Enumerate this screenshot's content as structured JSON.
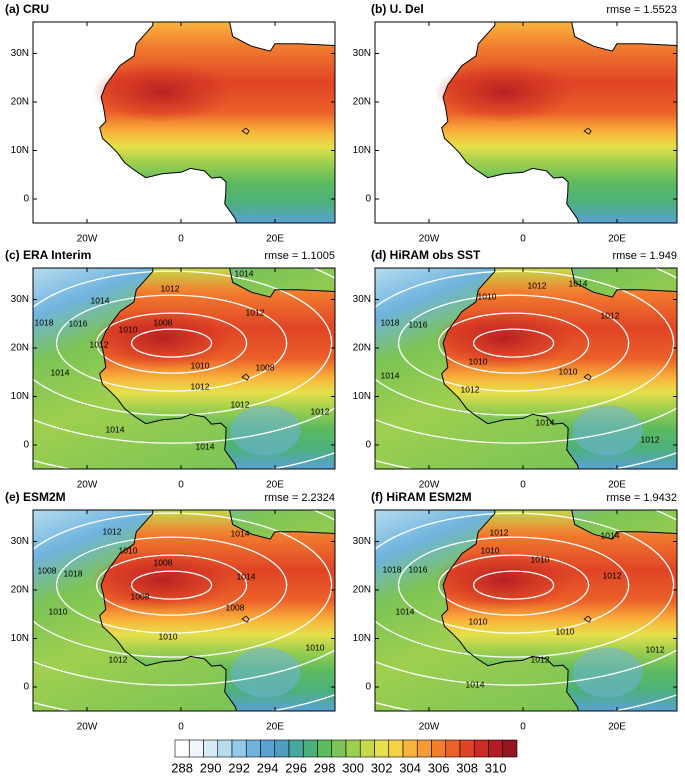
{
  "panels": [
    {
      "title": "(a) CRU"
    },
    {
      "title": "(b) U. Del",
      "rmse": "rmse = 1.5523"
    },
    {
      "title": "(c) ERA Interim",
      "rmse": "rmse = 1.1005",
      "contour_labels": [
        "1014",
        "1012",
        "1012",
        "1014",
        "1016",
        "1018",
        "1010",
        "1008",
        "1012",
        "1014",
        "1010",
        "1008",
        "1012",
        "1012",
        "1012",
        "1014",
        "1014"
      ]
    },
    {
      "title": "(d) HiRAM obs SST",
      "rmse": "rmse = 1.949",
      "contour_labels": [
        "1014",
        "1012",
        "1010",
        "1018",
        "1016",
        "1012",
        "1014",
        "1010",
        "1010",
        "1012",
        "1012",
        "1014"
      ]
    },
    {
      "title": "(e) ESM2M",
      "rmse": "rmse = 2.2324",
      "contour_labels": [
        "1012",
        "1014",
        "1010",
        "1008",
        "1018",
        "1014",
        "1008",
        "1010",
        "1008",
        "1008",
        "1010",
        "1010",
        "1012"
      ]
    },
    {
      "title": "(f) HiRAM ESM2M",
      "rmse": "rmse = 1.9432",
      "contour_labels": [
        "1012",
        "1014",
        "1010",
        "1018",
        "1016",
        "1010",
        "1012",
        "1014",
        "1010",
        "1010",
        "1012",
        "1012",
        "1014"
      ]
    }
  ],
  "lat_labels": [
    "30N",
    "20N",
    "10N",
    "0"
  ],
  "lon_labels": [
    "20W",
    "0",
    "20E"
  ],
  "colorbar": {
    "labels": [
      288,
      290,
      292,
      294,
      296,
      298,
      300,
      302,
      304,
      306,
      308,
      310
    ],
    "colors": [
      "#ffffff",
      "#eef6fb",
      "#d5ebf5",
      "#b6dcef",
      "#93c9e8",
      "#6fb3dd",
      "#5aa1d4",
      "#4e9ec0",
      "#48a7a0",
      "#4cb07c",
      "#5cba5f",
      "#7cc456",
      "#9fcf4f",
      "#c4da4a",
      "#e6e04a",
      "#f7d244",
      "#f8b53c",
      "#f69a35",
      "#f27d2f",
      "#ec6029",
      "#e04426",
      "#cc2c24",
      "#b31c22",
      "#941420"
    ]
  }
}
